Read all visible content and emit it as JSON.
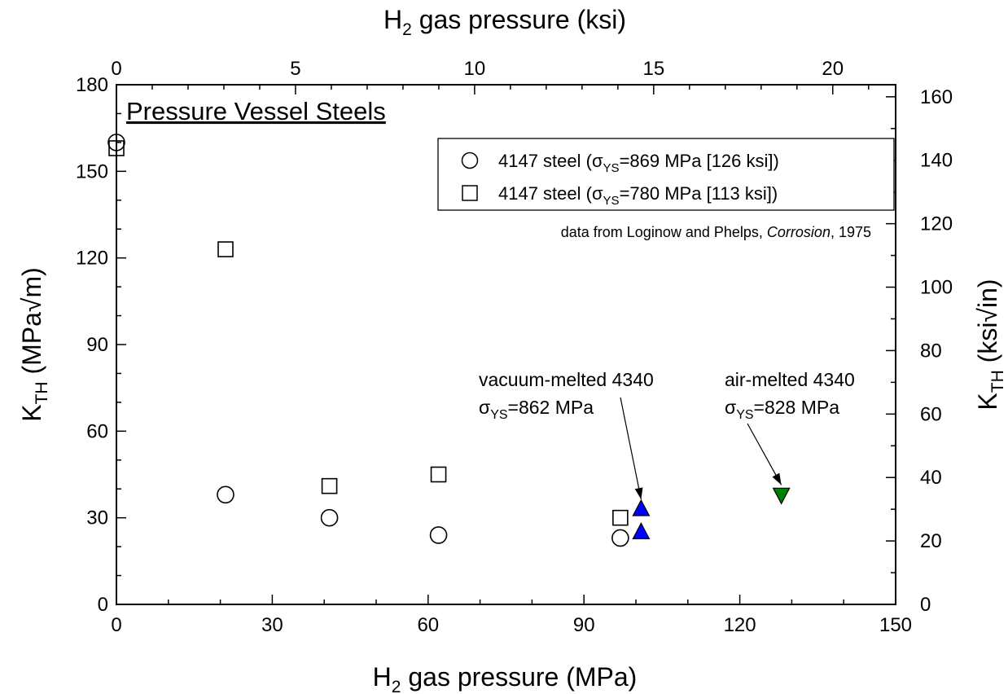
{
  "chart_data": {
    "type": "scatter",
    "title": "Pressure Vessel Steels",
    "x_axis_bottom": {
      "label_main": "H",
      "label_sub": "2",
      "label_rest": " gas pressure  (MPa)",
      "range": [
        0,
        150
      ],
      "ticks": [
        "0",
        "30",
        "60",
        "90",
        "120",
        "150"
      ]
    },
    "x_axis_top": {
      "label_main": "H",
      "label_sub": "2",
      "label_rest": " gas pressure  (ksi)",
      "ticks": [
        "0",
        "5",
        "10",
        "15",
        "20"
      ]
    },
    "y_axis_left": {
      "label_main": "K",
      "label_sub": "TH",
      "label_rest": "  (MPa√m)",
      "range": [
        0,
        180
      ],
      "ticks": [
        "0",
        "30",
        "60",
        "90",
        "120",
        "150",
        "180"
      ]
    },
    "y_axis_right": {
      "label_main": "K",
      "label_sub": "TH",
      "label_rest": "  (ksi√in)",
      "ticks": [
        "0",
        "20",
        "40",
        "60",
        "80",
        "100",
        "120",
        "140",
        "160"
      ]
    },
    "series": [
      {
        "name": "4147 steel (σYS=869 MPa [126 ksi])",
        "legend": {
          "prefix": "4147 steel (",
          "sigma": "σ",
          "sub": "YS",
          "suffix": "=869 MPa [126 ksi])"
        },
        "marker": "circle",
        "color": "#ffffff",
        "x": [
          0,
          21,
          41,
          62,
          97
        ],
        "y": [
          160,
          38,
          30,
          24,
          23
        ]
      },
      {
        "name": "4147 steel (σYS=780 MPa [113 ksi])",
        "legend": {
          "prefix": "4147 steel (",
          "sigma": "σ",
          "sub": "YS",
          "suffix": "=780 MPa [113 ksi])"
        },
        "marker": "square",
        "color": "#ffffff",
        "x": [
          0,
          21,
          41,
          62,
          97
        ],
        "y": [
          158,
          123,
          41,
          45,
          30
        ]
      },
      {
        "marker": "triangle-up",
        "color": "#0000ff",
        "x": [
          101,
          101
        ],
        "y": [
          33,
          25
        ]
      },
      {
        "marker": "triangle-down",
        "color": "#008000",
        "x": [
          128
        ],
        "y": [
          38
        ]
      }
    ],
    "note": {
      "prefix": "data from Loginow and Phelps, ",
      "italic": "Corrosion",
      "suffix": ", 1975"
    },
    "annotations": [
      {
        "line1": "vacuum-melted 4340",
        "sigma": "σ",
        "sub": "YS",
        "rest": "=862 MPa",
        "arrow_to": [
          101,
          33
        ]
      },
      {
        "line1": "air-melted 4340",
        "sigma": "σ",
        "sub": "YS",
        "rest": "=828 MPa",
        "arrow_to": [
          128,
          38
        ]
      }
    ],
    "legend_position": "top-right",
    "grid": false
  }
}
